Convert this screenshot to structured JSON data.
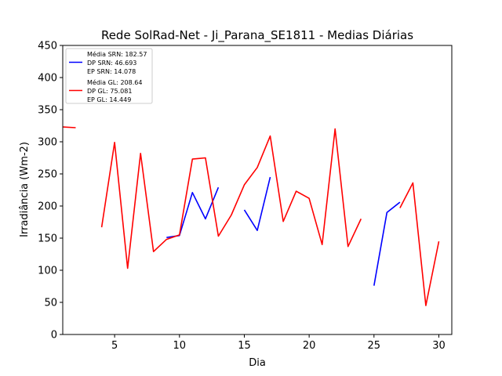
{
  "chart_data": {
    "type": "line",
    "title": "Rede SolRad-Net - Ji_Parana_SE1811 - Medias Diárias",
    "xlabel": "Dia",
    "ylabel": "Irradiância (Wm-2)",
    "xlim": [
      1,
      31
    ],
    "ylim": [
      0,
      450
    ],
    "xticks": [
      5,
      10,
      15,
      20,
      25,
      30
    ],
    "yticks": [
      0,
      50,
      100,
      150,
      200,
      250,
      300,
      350,
      400,
      450
    ],
    "grid": false,
    "legend_position": "top-left",
    "series": [
      {
        "key": "srn",
        "color": "#0000ff",
        "legend_lines": [
          "Média SRN: 182.57",
          "DP SRN: 46.693",
          "EP SRN: 14.078"
        ],
        "points": [
          [
            9,
            151
          ],
          [
            10,
            154
          ],
          [
            11,
            221
          ],
          [
            12,
            180
          ],
          [
            13,
            229
          ],
          null,
          [
            15,
            194
          ],
          [
            16,
            162
          ],
          [
            17,
            245
          ],
          null,
          [
            25,
            76
          ],
          [
            26,
            190
          ],
          [
            27,
            206
          ]
        ]
      },
      {
        "key": "gl",
        "color": "#ff0000",
        "legend_lines": [
          "Média GL: 208.64",
          "DP GL: 75.081",
          "EP GL: 14.449"
        ],
        "points": [
          [
            1,
            323
          ],
          [
            2,
            322
          ],
          null,
          [
            4,
            167
          ],
          [
            5,
            299
          ],
          [
            6,
            103
          ],
          [
            7,
            282
          ],
          [
            8,
            129
          ],
          [
            9,
            148
          ],
          [
            10,
            155
          ],
          [
            11,
            273
          ],
          [
            12,
            275
          ],
          [
            13,
            153
          ],
          [
            14,
            186
          ],
          [
            15,
            233
          ],
          [
            16,
            260
          ],
          [
            17,
            309
          ],
          [
            18,
            176
          ],
          [
            19,
            223
          ],
          [
            20,
            212
          ],
          [
            21,
            140
          ],
          [
            22,
            320
          ],
          [
            23,
            137
          ],
          [
            24,
            180
          ],
          null,
          [
            27,
            197
          ],
          [
            28,
            236
          ],
          [
            29,
            45
          ],
          [
            30,
            145
          ]
        ]
      }
    ]
  }
}
